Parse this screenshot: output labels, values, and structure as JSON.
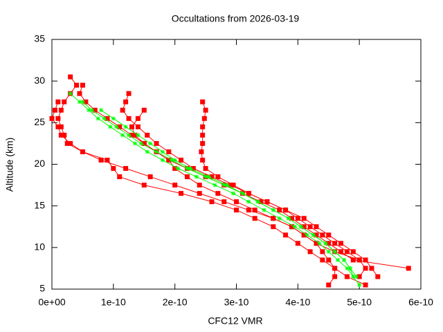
{
  "chart_data": {
    "type": "profile",
    "title": "Occultations from 2026-03-19",
    "x_label": "CFC12 VMR",
    "y_label": "Altitude (km)",
    "xlim": [
      0,
      6e-10
    ],
    "ylim": [
      5,
      35
    ],
    "xticks": [
      {
        "value": 0,
        "label": "0e+00"
      },
      {
        "value": 1e-10,
        "label": "1e-10"
      },
      {
        "value": 2e-10,
        "label": "2e-10"
      },
      {
        "value": 3e-10,
        "label": "3e-10"
      },
      {
        "value": 4e-10,
        "label": "4e-10"
      },
      {
        "value": 5e-10,
        "label": "5e-10"
      },
      {
        "value": 6e-10,
        "label": "6e-10"
      }
    ],
    "yticks": [
      5,
      10,
      15,
      20,
      25,
      30,
      35
    ],
    "series": [
      {
        "color": "#ff0000",
        "marker": "square",
        "x": [
          2.45e-10,
          2.5e-10,
          2.48e-10,
          2.45e-10,
          2.45e-10,
          2.45e-10,
          2.43e-10,
          2.45e-10,
          2.5e-10,
          2.7e-10,
          2.95e-10,
          3.2e-10,
          3.5e-10,
          3.8e-10,
          4e-10,
          4.2e-10,
          4.4e-10,
          4.6e-10,
          4.8e-10,
          5e-10,
          5.1e-10,
          5e-10
        ],
        "y": [
          27.5,
          26.5,
          25.5,
          24.5,
          23.5,
          22.5,
          21.5,
          20.5,
          19.5,
          18.5,
          17.5,
          16.5,
          15.5,
          14.5,
          13.5,
          12.5,
          11.5,
          10.5,
          9.5,
          8.5,
          7.5,
          6.5
        ]
      },
      {
        "color": "#ff0000",
        "marker": "square",
        "x": [
          3e-11,
          4e-11,
          3e-11,
          2e-11,
          1.5e-11,
          1e-11,
          1.5e-11,
          2e-11,
          2.5e-11,
          5e-11,
          8e-11,
          1.2e-10,
          1.6e-10,
          2e-10,
          2.4e-10,
          2.8e-10,
          3.2e-10,
          3.6e-10,
          3.9e-10,
          4.1e-10,
          4.3e-10,
          4.4e-10,
          4.5e-10,
          4.6e-10,
          4.6e-10,
          4.5e-10
        ],
        "y": [
          30.5,
          29.5,
          28.5,
          27.5,
          26.5,
          25.5,
          24.5,
          23.5,
          22.5,
          21.5,
          20.5,
          19.5,
          18.5,
          17.5,
          16.5,
          15.5,
          14.5,
          13.5,
          12.5,
          11.5,
          10.5,
          9.5,
          8.5,
          7.5,
          6.5,
          5.5
        ]
      },
      {
        "color": "#ff0000",
        "marker": "square",
        "x": [
          5e-11,
          4.5e-11,
          5.5e-11,
          7e-11,
          9e-11,
          1.1e-10,
          1.3e-10,
          1.5e-10,
          1.7e-10,
          1.9e-10,
          2.2e-10,
          2.5e-10,
          2.8e-10,
          3.1e-10,
          3.4e-10,
          3.7e-10,
          3.9e-10,
          4.1e-10,
          4.3e-10,
          4.5e-10,
          4.7e-10,
          4.9e-10,
          5.8e-10
        ],
        "y": [
          29.5,
          28.5,
          27.5,
          26.5,
          25.5,
          24.5,
          23.5,
          22.5,
          21.5,
          20.5,
          19.5,
          18.5,
          17.5,
          16.5,
          15.5,
          14.5,
          13.5,
          12.5,
          11.5,
          10.5,
          9.5,
          8.5,
          7.5
        ]
      },
      {
        "color": "#ff0000",
        "marker": "square",
        "x": [
          1.25e-10,
          1.2e-10,
          1.15e-10,
          1.25e-10,
          1.4e-10,
          1.55e-10,
          1.7e-10,
          1.9e-10,
          2.1e-10,
          2.3e-10,
          2.6e-10,
          2.9e-10,
          3.2e-10,
          3.5e-10,
          3.8e-10,
          4.1e-10,
          4.3e-10,
          4.5e-10,
          4.7e-10,
          4.9e-10,
          5.1e-10,
          5.2e-10,
          5.3e-10
        ],
        "y": [
          28.5,
          27.5,
          26.5,
          25.5,
          24.5,
          23.5,
          22.5,
          21.5,
          20.5,
          19.5,
          18.5,
          17.5,
          16.5,
          15.5,
          14.5,
          13.5,
          12.5,
          11.5,
          10.5,
          9.5,
          8.5,
          7.5,
          6.5
        ]
      },
      {
        "color": "#ff0000",
        "marker": "square",
        "x": [
          1e-11,
          5e-12,
          0,
          1e-11,
          1.5e-11,
          3e-11,
          5e-11,
          9e-11,
          1e-10,
          1.1e-10,
          1.5e-10,
          2.1e-10,
          2.6e-10,
          3e-10,
          3.3e-10,
          3.6e-10,
          3.8e-10,
          4e-10,
          4.2e-10,
          4.4e-10,
          4.6e-10,
          4.8e-10,
          5.1e-10
        ],
        "y": [
          27.5,
          26.5,
          25.5,
          24.5,
          23.5,
          22.5,
          21.5,
          20.5,
          19.5,
          18.5,
          17.5,
          16.5,
          15.5,
          14.5,
          13.5,
          12.5,
          11.5,
          10.5,
          9.5,
          8.5,
          7.5,
          6.5,
          5.5
        ]
      },
      {
        "color": "#ff0000",
        "marker": "square",
        "x": [
          1.5e-10,
          1.4e-10,
          1.3e-10,
          1.35e-10,
          1.5e-10,
          1.7e-10,
          1.9e-10,
          2e-10,
          2.2e-10,
          2.4e-10,
          2.7e-10,
          3e-10,
          3.3e-10,
          3.6e-10,
          3.9e-10,
          4.1e-10,
          4.3e-10,
          4.6e-10,
          5e-10
        ],
        "y": [
          26.5,
          25.5,
          24.5,
          23.5,
          22.5,
          21.5,
          20.5,
          19.5,
          18.5,
          17.5,
          16.5,
          15.5,
          14.5,
          13.5,
          12.5,
          11.5,
          10.5,
          9.5,
          8.5
        ]
      },
      {
        "color": "#00ff00",
        "marker": "star",
        "x": [
          3e-11,
          4.5e-11,
          6e-11,
          7.5e-11,
          9.5e-11,
          1.15e-10,
          1.35e-10,
          1.55e-10,
          1.8e-10,
          2.05e-10,
          2.35e-10,
          2.65e-10,
          2.95e-10,
          3.2e-10,
          3.45e-10,
          3.7e-10,
          3.95e-10,
          4.15e-10,
          4.35e-10,
          4.5e-10,
          4.65e-10,
          4.8e-10,
          4.9e-10,
          5e-10
        ],
        "y": [
          28.5,
          27.5,
          26.5,
          25.5,
          24.5,
          23.5,
          22.5,
          21.5,
          20.5,
          19.5,
          18.5,
          17.5,
          16.5,
          15.5,
          14.5,
          13.5,
          12.5,
          11.5,
          10.5,
          9.5,
          8.5,
          7.5,
          6.5,
          5.5
        ]
      },
      {
        "color": "#00ff00",
        "marker": "star",
        "x": [
          5e-11,
          6.5e-11,
          8.5e-11,
          1.05e-10,
          1.25e-10,
          1.45e-10,
          1.7e-10,
          1.95e-10,
          2.2e-10,
          2.5e-10,
          2.8e-10,
          3.1e-10,
          3.35e-10,
          3.6e-10,
          3.85e-10,
          4.05e-10,
          4.25e-10,
          4.45e-10,
          4.6e-10,
          4.75e-10,
          4.85e-10,
          4.95e-10
        ],
        "y": [
          27.5,
          26.5,
          25.5,
          24.5,
          23.5,
          22.5,
          21.5,
          20.5,
          19.5,
          18.5,
          17.5,
          16.5,
          15.5,
          14.5,
          13.5,
          12.5,
          11.5,
          10.5,
          9.5,
          8.5,
          7.5,
          6.5
        ]
      },
      {
        "color": "#00ff00",
        "marker": "star",
        "x": [
          8e-11,
          1e-10,
          1.2e-10,
          1.4e-10,
          1.6e-10,
          1.8e-10,
          2e-10,
          2.25e-10,
          2.55e-10,
          2.85e-10,
          3.1e-10,
          3.35e-10,
          3.6e-10,
          3.85e-10,
          4.05e-10,
          4.25e-10,
          4.45e-10,
          4.6e-10,
          4.75e-10,
          4.85e-10,
          4.9e-10
        ],
        "y": [
          26.5,
          25.5,
          24.5,
          23.5,
          22.5,
          21.5,
          20.5,
          19.5,
          18.5,
          17.5,
          16.5,
          15.5,
          14.5,
          13.5,
          12.5,
          11.5,
          10.5,
          9.5,
          8.5,
          7.5,
          6.5
        ]
      }
    ]
  }
}
